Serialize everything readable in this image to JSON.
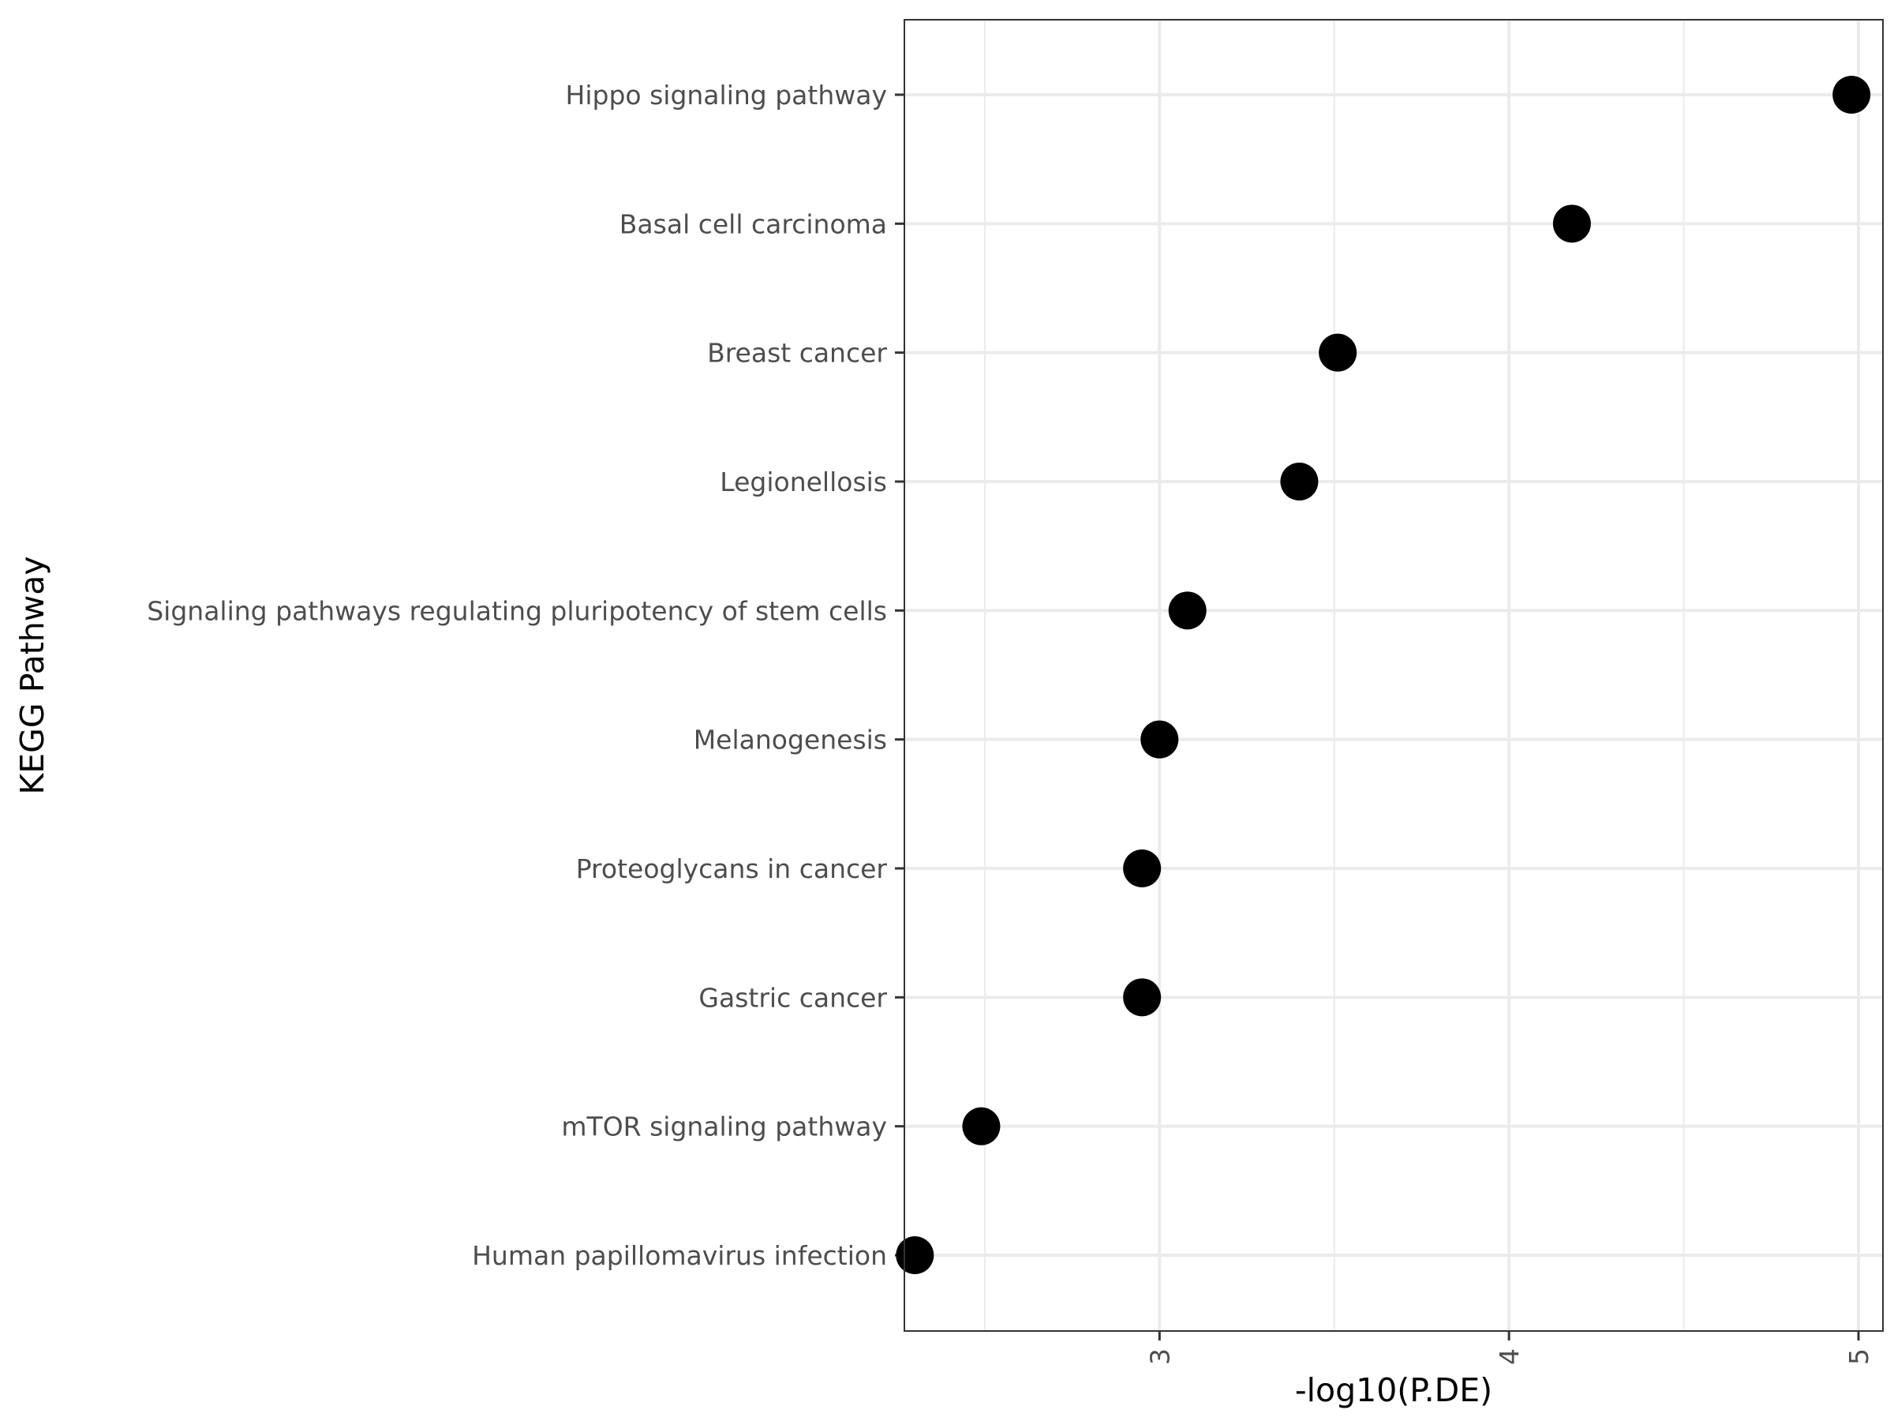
{
  "chart_data": {
    "type": "scatter",
    "title": "",
    "xlabel": "-log10(P.DE)",
    "ylabel": "KEGG Pathway",
    "xlim": [
      2.27,
      5.07
    ],
    "x_ticks": [
      "3",
      "4",
      "5"
    ],
    "grid": true,
    "legend": "none",
    "point_color": "#000000",
    "categories": [
      "Hippo signaling pathway",
      "Basal cell carcinoma",
      "Breast cancer",
      "Legionellosis",
      "Signaling pathways regulating pluripotency of stem cells",
      "Melanogenesis",
      "Proteoglycans in cancer",
      "Gastric cancer",
      "mTOR signaling pathway",
      "Human papillomavirus infection"
    ],
    "values": [
      4.98,
      4.18,
      3.51,
      3.4,
      3.08,
      3.0,
      2.95,
      2.95,
      2.49,
      2.3
    ]
  }
}
